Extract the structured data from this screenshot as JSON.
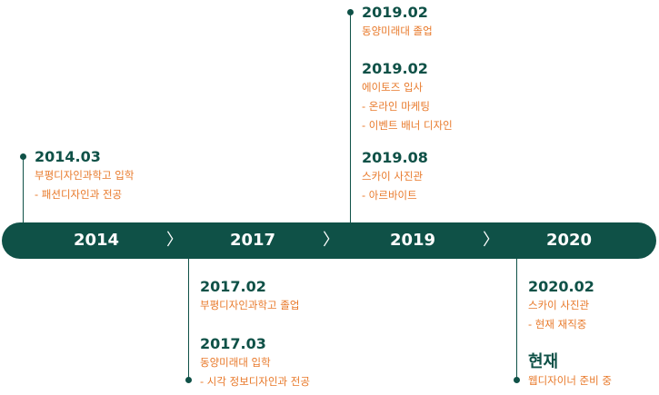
{
  "years": [
    "2014",
    "2017",
    "2019",
    "2020"
  ],
  "separator": "〉",
  "groups": [
    {
      "events": [
        {
          "date": "2014.03",
          "lines": [
            "부평디자인과학고 입학",
            "- 패션디자인과 전공"
          ]
        }
      ]
    },
    {
      "events": [
        {
          "date": "2017.02",
          "lines": [
            "부평디자인과학고 졸업"
          ]
        },
        {
          "date": "2017.03",
          "lines": [
            "동양미래대 입학",
            "- 시각 정보디자인과 전공"
          ]
        }
      ]
    },
    {
      "events": [
        {
          "date": "2019.02",
          "lines": [
            "동양미래대 졸업"
          ]
        },
        {
          "date": "2019.02",
          "lines": [
            "에이토즈 입사",
            "- 온라인 마케팅",
            "- 이벤트 배너 디자인"
          ]
        },
        {
          "date": "2019.08",
          "lines": [
            "스카이 사진관",
            "- 아르바이트"
          ]
        }
      ]
    },
    {
      "events": [
        {
          "date": "2020.02",
          "lines": [
            "스카이 사진관",
            "- 현재 재직중"
          ]
        },
        {
          "date": "현재",
          "lines": [
            "웹디자이너 준비 중"
          ]
        }
      ]
    }
  ],
  "colors": {
    "primary": "#0f5147",
    "accent": "#e8792a"
  }
}
